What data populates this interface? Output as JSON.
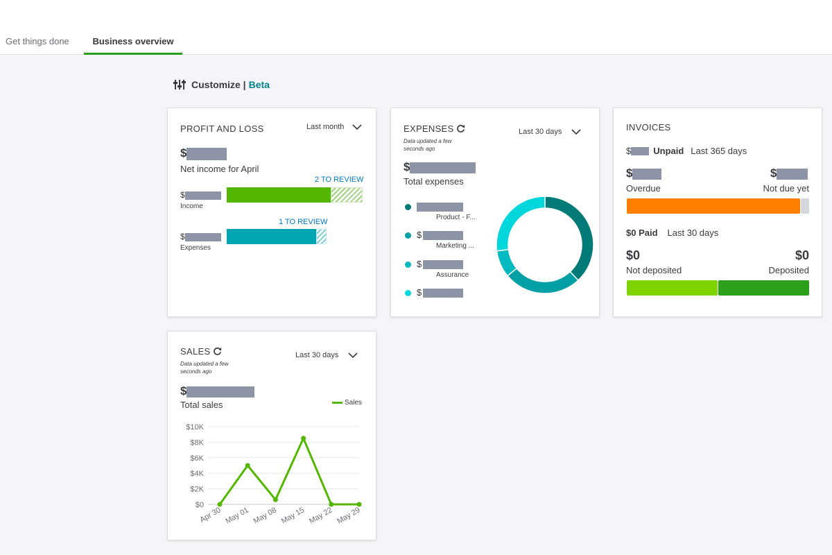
{
  "tabs": [
    {
      "label": "Get things done",
      "active": false
    },
    {
      "label": "Business overview",
      "active": true
    }
  ],
  "customize": {
    "label": "Customize |",
    "beta": "Beta"
  },
  "profit_loss": {
    "title": "PROFIT AND LOSS",
    "period": "Last month",
    "currency": "$",
    "net_income_label": "Net income for April",
    "income_review": "2 TO REVIEW",
    "income_label": "Income",
    "expenses_review": "1 TO REVIEW",
    "expenses_label": "Expenses",
    "colors": {
      "income": "#53b700",
      "expenses": "#00a6b4"
    }
  },
  "expenses": {
    "title": "EXPENSES",
    "updated": "Data updated a few seconds ago",
    "period": "Last 30 days",
    "currency": "$",
    "total_label": "Total expenses",
    "legend": [
      {
        "label": "Product - F...",
        "color": "#007a76"
      },
      {
        "label": "Marketing ...",
        "color": "#00a0a6"
      },
      {
        "label": "Assurance",
        "color": "#00b9c1"
      },
      {
        "label": "",
        "color": "#00d7dc"
      }
    ],
    "donut": [
      {
        "value": 38,
        "color": "#007a76"
      },
      {
        "value": 26,
        "color": "#00a0a6"
      },
      {
        "value": 9,
        "color": "#00b9c1"
      },
      {
        "value": 27,
        "color": "#00d7dc"
      }
    ]
  },
  "invoices": {
    "title": "INVOICES",
    "currency": "$",
    "unpaid_label": "Unpaid",
    "unpaid_period": "Last 365 days",
    "overdue_label": "Overdue",
    "not_due_label": "Not due yet",
    "overdue_fraction": 0.95,
    "paid_label": "$0 Paid",
    "paid_period": "Last 30 days",
    "not_deposited_value": "$0",
    "not_deposited_label": "Not deposited",
    "deposited_value": "$0",
    "deposited_label": "Deposited",
    "colors": {
      "overdue": "#ff8000",
      "not_due": "#d4d7dc",
      "not_deposited": "#7fd400",
      "deposited": "#2ca01c"
    }
  },
  "sales": {
    "title": "SALES",
    "updated": "Data updated a few seconds ago",
    "period": "Last 30 days",
    "currency": "$",
    "total_label": "Total sales",
    "legend": "Sales"
  },
  "chart_data": {
    "type": "line",
    "x": [
      "Apr 30",
      "May 01",
      "May 08",
      "May 15",
      "May 22",
      "May 29"
    ],
    "yticks": [
      "$10K",
      "$8K",
      "$6K",
      "$4K",
      "$2K",
      "$0"
    ],
    "ylim": [
      0,
      10000
    ],
    "series": [
      {
        "name": "Sales",
        "color": "#53b700",
        "values": [
          0,
          5000,
          600,
          8500,
          0,
          0
        ]
      }
    ]
  }
}
